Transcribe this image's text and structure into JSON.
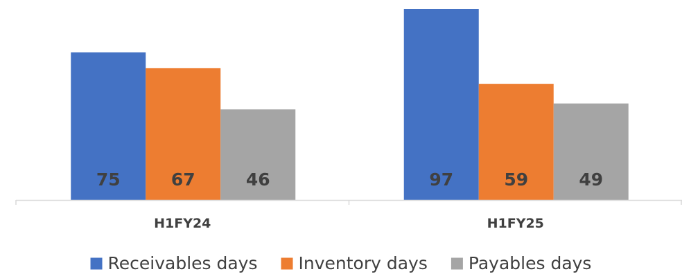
{
  "chart_data": {
    "type": "bar",
    "categories": [
      "H1FY24",
      "H1FY25"
    ],
    "series": [
      {
        "name": "Receivables days",
        "values": [
          75,
          97
        ],
        "color": "#4472C4"
      },
      {
        "name": "Inventory days",
        "values": [
          67,
          59
        ],
        "color": "#ED7D31"
      },
      {
        "name": "Payables days",
        "values": [
          46,
          49
        ],
        "color": "#A5A5A5"
      }
    ],
    "title": "",
    "xlabel": "",
    "ylabel": "",
    "ylim": [
      0,
      100
    ],
    "grid": false,
    "legend": "bottom",
    "axis_color": "#D9D9D9"
  }
}
